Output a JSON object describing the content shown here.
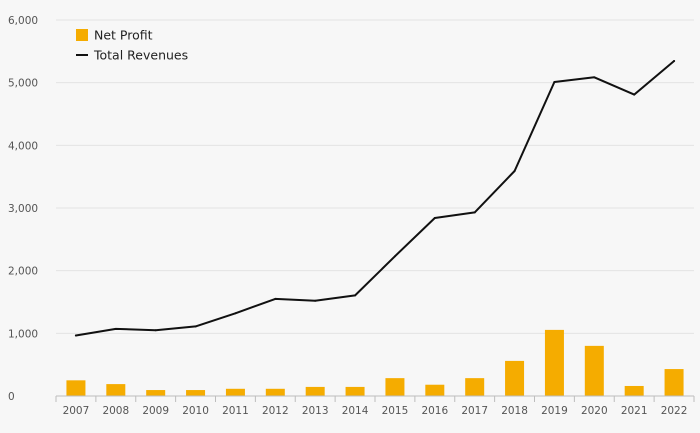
{
  "chart_data": {
    "type": "bar",
    "categories": [
      "2007",
      "2008",
      "2009",
      "2010",
      "2011",
      "2012",
      "2013",
      "2014",
      "2015",
      "2016",
      "2017",
      "2018",
      "2019",
      "2020",
      "2021",
      "2022"
    ],
    "series": [
      {
        "name": "Net Profit",
        "type": "bar",
        "color": "#f5ac00",
        "values": [
          250,
          190,
          95,
          95,
          115,
          115,
          145,
          145,
          285,
          180,
          285,
          560,
          1055,
          800,
          160,
          430
        ]
      },
      {
        "name": "Total Revenues",
        "type": "line",
        "color": "#111111",
        "values": [
          965,
          1070,
          1050,
          1110,
          1320,
          1550,
          1520,
          1605,
          2230,
          2840,
          2930,
          3590,
          5010,
          5085,
          4810,
          5345
        ]
      }
    ],
    "y_ticks": [
      "0",
      "1,000",
      "2,000",
      "3,000",
      "4,000",
      "5,000",
      "6,000"
    ],
    "ylim": [
      0,
      6000
    ],
    "grid": true,
    "legend_position": "top-left"
  }
}
